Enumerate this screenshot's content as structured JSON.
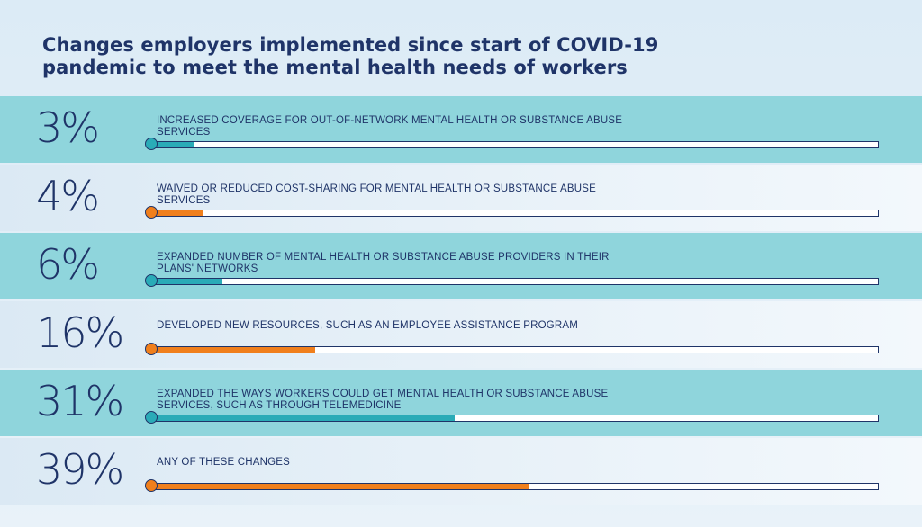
{
  "title_line1": "Changes employers implemented since start of COVID-19",
  "title_line2": "pandemic to meet the mental health needs of workers",
  "colors": {
    "teal": "#2aabb7",
    "orange": "#f07f1c",
    "navy": "#1f3468"
  },
  "chart_data": {
    "type": "bar",
    "orientation": "horizontal",
    "title": "Changes employers implemented since start of COVID-19 pandemic to meet the mental health needs of workers",
    "unit": "%",
    "xlim": [
      0,
      100
    ],
    "categories": [
      "INCREASED COVERAGE FOR OUT-OF-NETWORK MENTAL HEALTH OR SUBSTANCE ABUSE SERVICES",
      "WAIVED OR REDUCED COST-SHARING FOR MENTAL HEALTH OR SUBSTANCE ABUSE SERVICES",
      "EXPANDED NUMBER OF MENTAL HEALTH OR SUBSTANCE ABUSE PROVIDERS IN THEIR PLANS' NETWORKS",
      "DEVELOPED NEW RESOURCES, SUCH AS AN EMPLOYEE ASSISTANCE PROGRAM",
      "EXPANDED THE WAYS WORKERS COULD GET MENTAL HEALTH OR SUBSTANCE ABUSE SERVICES, SUCH AS THROUGH TELEMEDICINE",
      "ANY OF THESE CHANGES"
    ],
    "values": [
      3,
      4,
      6,
      16,
      31,
      39
    ]
  },
  "rows": [
    {
      "pct_label": "3%",
      "label": "Increased coverage for out-of-network mental health or substance abuse services",
      "value": 3,
      "color": "#2aabb7",
      "band": "teal"
    },
    {
      "pct_label": "4%",
      "label": "Waived or reduced cost-sharing for mental health or substance abuse services",
      "value": 4,
      "color": "#f07f1c",
      "band": "light"
    },
    {
      "pct_label": "6%",
      "label": "Expanded number of mental health or substance abuse providers in their plans' networks",
      "value": 6,
      "color": "#2aabb7",
      "band": "teal"
    },
    {
      "pct_label": "16%",
      "label": "Developed new resources, such as an employee assistance program",
      "value": 16,
      "color": "#f07f1c",
      "band": "light"
    },
    {
      "pct_label": "31%",
      "label": "Expanded the ways workers could get mental health or substance abuse services, such as through telemedicine",
      "value": 31,
      "color": "#2aabb7",
      "band": "teal"
    },
    {
      "pct_label": "39%",
      "label": "Any of these changes",
      "value": 39,
      "color": "#f07f1c",
      "band": "light"
    }
  ]
}
